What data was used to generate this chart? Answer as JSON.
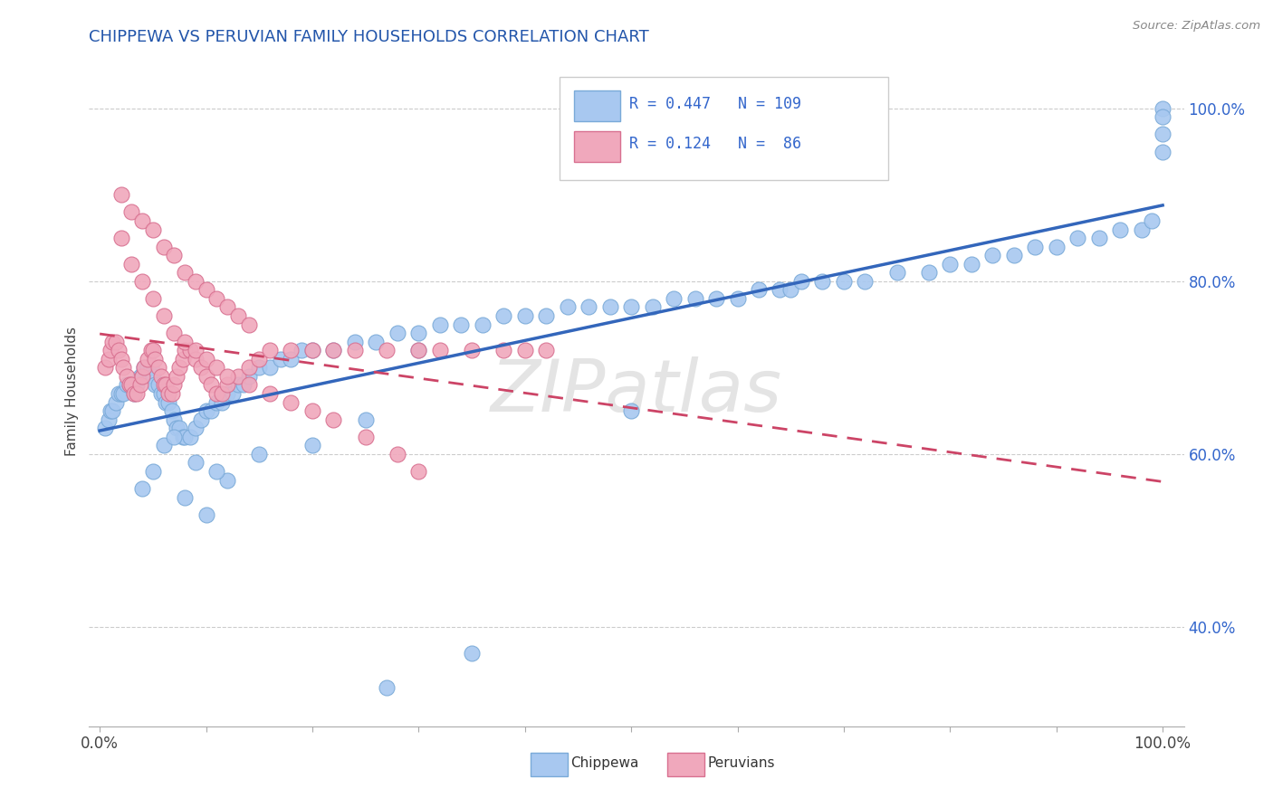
{
  "title": "CHIPPEWA VS PERUVIAN FAMILY HOUSEHOLDS CORRELATION CHART",
  "source": "Source: ZipAtlas.com",
  "ylabel": "Family Households",
  "chippewa_color": "#A8C8F0",
  "chippewa_edge_color": "#7AAAD8",
  "peruvian_color": "#F0A8BC",
  "peruvian_edge_color": "#D87090",
  "chippewa_line_color": "#3366BB",
  "peruvian_line_color": "#CC4466",
  "legend_R_chippewa": "0.447",
  "legend_N_chippewa": "109",
  "legend_R_peruvian": "0.124",
  "legend_N_peruvian": " 86",
  "watermark": "ZIPatlas",
  "title_color": "#2255AA",
  "axis_text_color": "#3366CC",
  "title_fontsize": 13,
  "ytick_vals": [
    0.4,
    0.6,
    0.8,
    1.0
  ],
  "ytick_labels": [
    "40.0%",
    "60.0%",
    "80.0%",
    "100.0%"
  ],
  "xlim": [
    -0.01,
    1.02
  ],
  "ylim": [
    0.285,
    1.06
  ],
  "chip_x": [
    0.005,
    0.008,
    0.01,
    0.012,
    0.015,
    0.018,
    0.02,
    0.022,
    0.025,
    0.028,
    0.03,
    0.032,
    0.035,
    0.038,
    0.04,
    0.042,
    0.045,
    0.048,
    0.05,
    0.052,
    0.055,
    0.058,
    0.06,
    0.062,
    0.065,
    0.068,
    0.07,
    0.072,
    0.075,
    0.078,
    0.08,
    0.085,
    0.09,
    0.095,
    0.1,
    0.105,
    0.11,
    0.115,
    0.12,
    0.125,
    0.13,
    0.135,
    0.14,
    0.15,
    0.16,
    0.17,
    0.18,
    0.19,
    0.2,
    0.22,
    0.24,
    0.26,
    0.28,
    0.3,
    0.32,
    0.34,
    0.36,
    0.38,
    0.4,
    0.42,
    0.44,
    0.46,
    0.48,
    0.5,
    0.5,
    0.52,
    0.54,
    0.56,
    0.58,
    0.6,
    0.62,
    0.64,
    0.65,
    0.66,
    0.68,
    0.7,
    0.72,
    0.75,
    0.78,
    0.8,
    0.82,
    0.84,
    0.86,
    0.88,
    0.9,
    0.92,
    0.94,
    0.96,
    0.98,
    0.99,
    1.0,
    1.0,
    1.0,
    1.0,
    0.27,
    0.35,
    0.12,
    0.08,
    0.09,
    0.1,
    0.11,
    0.06,
    0.07,
    0.04,
    0.05,
    0.15,
    0.2,
    0.25,
    0.3
  ],
  "chip_y": [
    0.63,
    0.64,
    0.65,
    0.65,
    0.66,
    0.67,
    0.67,
    0.67,
    0.68,
    0.68,
    0.68,
    0.67,
    0.68,
    0.69,
    0.69,
    0.7,
    0.7,
    0.7,
    0.69,
    0.68,
    0.68,
    0.67,
    0.67,
    0.66,
    0.66,
    0.65,
    0.64,
    0.63,
    0.63,
    0.62,
    0.62,
    0.62,
    0.63,
    0.64,
    0.65,
    0.65,
    0.66,
    0.66,
    0.67,
    0.67,
    0.68,
    0.68,
    0.69,
    0.7,
    0.7,
    0.71,
    0.71,
    0.72,
    0.72,
    0.72,
    0.73,
    0.73,
    0.74,
    0.74,
    0.75,
    0.75,
    0.75,
    0.76,
    0.76,
    0.76,
    0.77,
    0.77,
    0.77,
    0.77,
    0.65,
    0.77,
    0.78,
    0.78,
    0.78,
    0.78,
    0.79,
    0.79,
    0.79,
    0.8,
    0.8,
    0.8,
    0.8,
    0.81,
    0.81,
    0.82,
    0.82,
    0.83,
    0.83,
    0.84,
    0.84,
    0.85,
    0.85,
    0.86,
    0.86,
    0.87,
    0.97,
    1.0,
    0.99,
    0.95,
    0.33,
    0.37,
    0.57,
    0.55,
    0.59,
    0.53,
    0.58,
    0.61,
    0.62,
    0.56,
    0.58,
    0.6,
    0.61,
    0.64,
    0.72
  ],
  "peru_x": [
    0.005,
    0.008,
    0.01,
    0.012,
    0.015,
    0.018,
    0.02,
    0.022,
    0.025,
    0.028,
    0.03,
    0.032,
    0.035,
    0.038,
    0.04,
    0.042,
    0.045,
    0.048,
    0.05,
    0.052,
    0.055,
    0.058,
    0.06,
    0.062,
    0.065,
    0.068,
    0.07,
    0.072,
    0.075,
    0.078,
    0.08,
    0.085,
    0.09,
    0.095,
    0.1,
    0.105,
    0.11,
    0.115,
    0.12,
    0.13,
    0.14,
    0.15,
    0.16,
    0.18,
    0.2,
    0.22,
    0.24,
    0.27,
    0.3,
    0.32,
    0.35,
    0.38,
    0.4,
    0.42,
    0.02,
    0.03,
    0.04,
    0.05,
    0.06,
    0.07,
    0.08,
    0.09,
    0.1,
    0.11,
    0.12,
    0.14,
    0.16,
    0.18,
    0.2,
    0.22,
    0.25,
    0.28,
    0.3,
    0.02,
    0.03,
    0.04,
    0.05,
    0.06,
    0.07,
    0.08,
    0.09,
    0.1,
    0.11,
    0.12,
    0.13,
    0.14
  ],
  "peru_y": [
    0.7,
    0.71,
    0.72,
    0.73,
    0.73,
    0.72,
    0.71,
    0.7,
    0.69,
    0.68,
    0.68,
    0.67,
    0.67,
    0.68,
    0.69,
    0.7,
    0.71,
    0.72,
    0.72,
    0.71,
    0.7,
    0.69,
    0.68,
    0.68,
    0.67,
    0.67,
    0.68,
    0.69,
    0.7,
    0.71,
    0.72,
    0.72,
    0.71,
    0.7,
    0.69,
    0.68,
    0.67,
    0.67,
    0.68,
    0.69,
    0.7,
    0.71,
    0.72,
    0.72,
    0.72,
    0.72,
    0.72,
    0.72,
    0.72,
    0.72,
    0.72,
    0.72,
    0.72,
    0.72,
    0.85,
    0.82,
    0.8,
    0.78,
    0.76,
    0.74,
    0.73,
    0.72,
    0.71,
    0.7,
    0.69,
    0.68,
    0.67,
    0.66,
    0.65,
    0.64,
    0.62,
    0.6,
    0.58,
    0.9,
    0.88,
    0.87,
    0.86,
    0.84,
    0.83,
    0.81,
    0.8,
    0.79,
    0.78,
    0.77,
    0.76,
    0.75
  ]
}
